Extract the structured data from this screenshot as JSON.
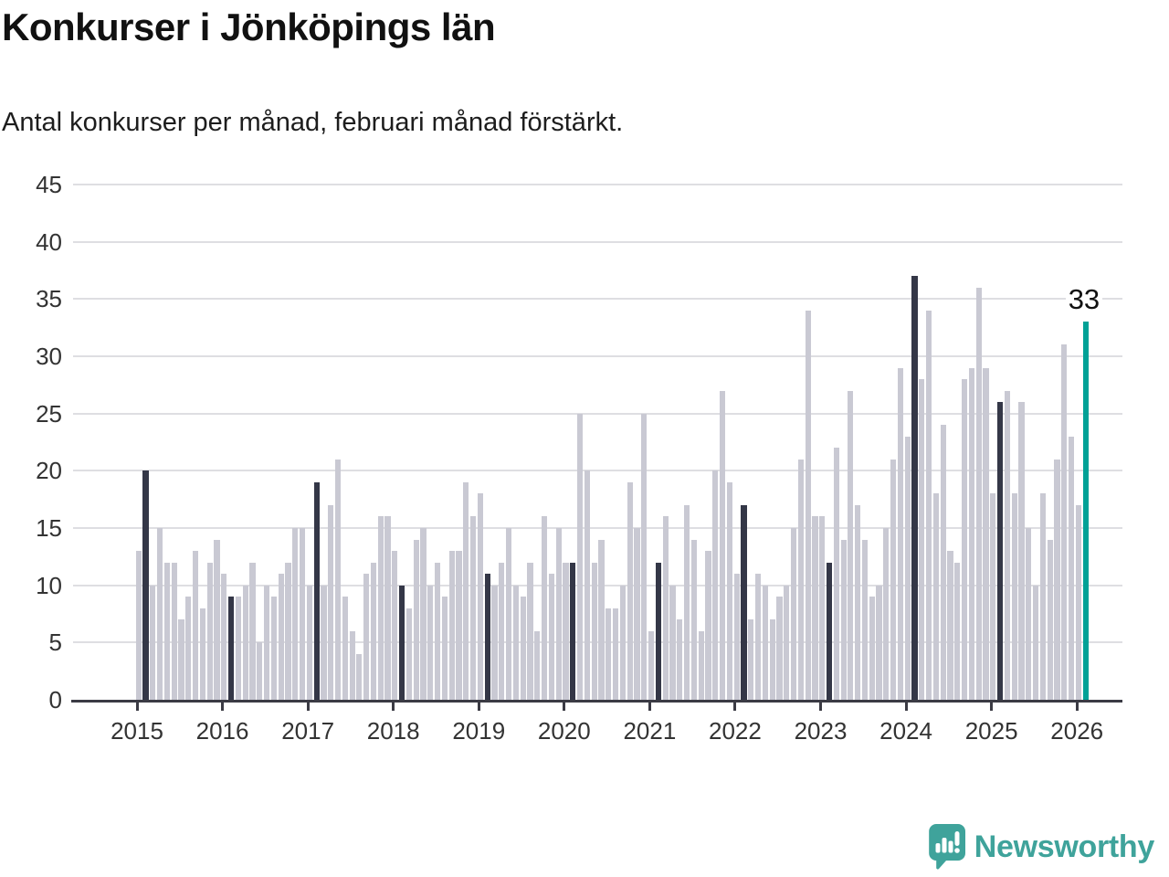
{
  "header": {
    "title": "Konkurser i Jönköpings län",
    "subtitle": "Antal konkurser per månad, februari månad förstärkt."
  },
  "annotation": {
    "last_value_label": "33"
  },
  "logo": {
    "name": "Newsworthy",
    "icon": "newsworthy-chart-bubble-icon"
  },
  "colors": {
    "bar_default": "#c9c9d3",
    "bar_february": "#343747",
    "bar_current": "#00a196",
    "gridline": "#dedee2",
    "axis": "#3b3b44",
    "logo_teal": "#3fa39b",
    "text": "#111111"
  },
  "chart_data": {
    "type": "bar",
    "title": "Konkurser i Jönköpings län",
    "subtitle": "Antal konkurser per månad, februari månad förstärkt.",
    "xlabel": "",
    "ylabel": "",
    "ylim": [
      0,
      45
    ],
    "y_ticks": [
      0,
      5,
      10,
      15,
      20,
      25,
      30,
      35,
      40,
      45
    ],
    "x_tick_years": [
      "2015",
      "2016",
      "2017",
      "2018",
      "2019",
      "2020",
      "2021",
      "2022",
      "2023",
      "2024",
      "2025",
      "2026"
    ],
    "grid": "horizontal",
    "legend": "none",
    "highlight_note": "February bars dark; latest bar (Feb 2026) teal with data label 33",
    "series": [
      {
        "name": "Antal konkurser per månad",
        "values_by_year": {
          "2015": [
            13,
            20,
            10,
            15,
            12,
            12,
            7,
            9,
            13,
            8,
            12,
            14
          ],
          "2016": [
            11,
            9,
            9,
            10,
            12,
            5,
            10,
            9,
            11,
            12,
            15,
            15
          ],
          "2017": [
            10,
            19,
            10,
            17,
            21,
            9,
            6,
            4,
            11,
            12,
            16,
            16
          ],
          "2018": [
            13,
            10,
            8,
            14,
            15,
            10,
            12,
            9,
            13,
            13,
            19,
            16
          ],
          "2019": [
            18,
            11,
            10,
            12,
            15,
            10,
            9,
            12,
            6,
            16,
            11,
            15
          ],
          "2020": [
            12,
            12,
            25,
            20,
            12,
            14,
            8,
            8,
            10,
            19,
            15,
            25
          ],
          "2021": [
            6,
            12,
            16,
            10,
            7,
            17,
            14,
            6,
            13,
            20,
            27,
            19
          ],
          "2022": [
            11,
            17,
            7,
            11,
            10,
            7,
            9,
            10,
            15,
            21,
            34,
            16
          ],
          "2023": [
            16,
            12,
            22,
            14,
            27,
            17,
            14,
            9,
            10,
            15,
            21,
            29
          ],
          "2024": [
            23,
            37,
            28,
            34,
            18,
            24,
            13,
            12,
            28,
            29,
            36,
            29
          ],
          "2025": [
            18,
            26,
            27,
            18,
            26,
            15,
            10,
            18,
            14,
            21,
            31,
            23
          ],
          "2026": [
            17,
            33
          ]
        }
      }
    ]
  }
}
